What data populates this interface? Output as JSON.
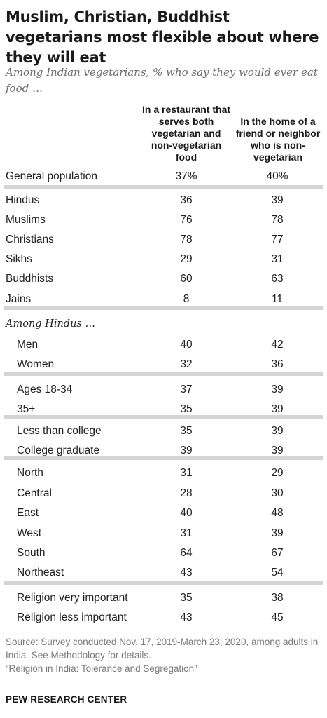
{
  "header": {
    "title": "Muslim, Christian, Buddhist vegetarians most flexible about where they will eat",
    "subtitle": "Among Indian vegetarians, % who say they would ever eat food …"
  },
  "chart_data": {
    "type": "table",
    "columns": [
      "In a restaurant that serves both vegetarian and non-vegetarian food",
      "In the home of a friend or neighbor who is non-vegetarian"
    ],
    "section_label": "Among Hindus …",
    "rows": [
      {
        "label": "General population",
        "v1": "37%",
        "v2": "40%"
      },
      {
        "label": "Hindus",
        "v1": "36",
        "v2": "39"
      },
      {
        "label": "Muslims",
        "v1": "76",
        "v2": "78"
      },
      {
        "label": "Christians",
        "v1": "78",
        "v2": "77"
      },
      {
        "label": "Sikhs",
        "v1": "29",
        "v2": "31"
      },
      {
        "label": "Buddhists",
        "v1": "60",
        "v2": "63"
      },
      {
        "label": "Jains",
        "v1": "8",
        "v2": "11"
      },
      {
        "label": "Men",
        "v1": "40",
        "v2": "42"
      },
      {
        "label": "Women",
        "v1": "32",
        "v2": "36"
      },
      {
        "label": "Ages 18-34",
        "v1": "37",
        "v2": "39"
      },
      {
        "label": "35+",
        "v1": "35",
        "v2": "39"
      },
      {
        "label": "Less than college",
        "v1": "35",
        "v2": "39"
      },
      {
        "label": "College graduate",
        "v1": "39",
        "v2": "39"
      },
      {
        "label": "North",
        "v1": "31",
        "v2": "29"
      },
      {
        "label": "Central",
        "v1": "28",
        "v2": "30"
      },
      {
        "label": "East",
        "v1": "40",
        "v2": "48"
      },
      {
        "label": "West",
        "v1": "31",
        "v2": "39"
      },
      {
        "label": "South",
        "v1": "64",
        "v2": "67"
      },
      {
        "label": "Northeast",
        "v1": "43",
        "v2": "54"
      },
      {
        "label": "Religion very important",
        "v1": "35",
        "v2": "38"
      },
      {
        "label": "Religion less important",
        "v1": "43",
        "v2": "45"
      }
    ]
  },
  "footer": {
    "source": "Source: Survey conducted Nov. 17, 2019-March 23, 2020, among adults in India. See Methodology for details.",
    "report": "“Religion in India: Tolerance and Segregation”",
    "brand": "PEW RESEARCH CENTER"
  }
}
